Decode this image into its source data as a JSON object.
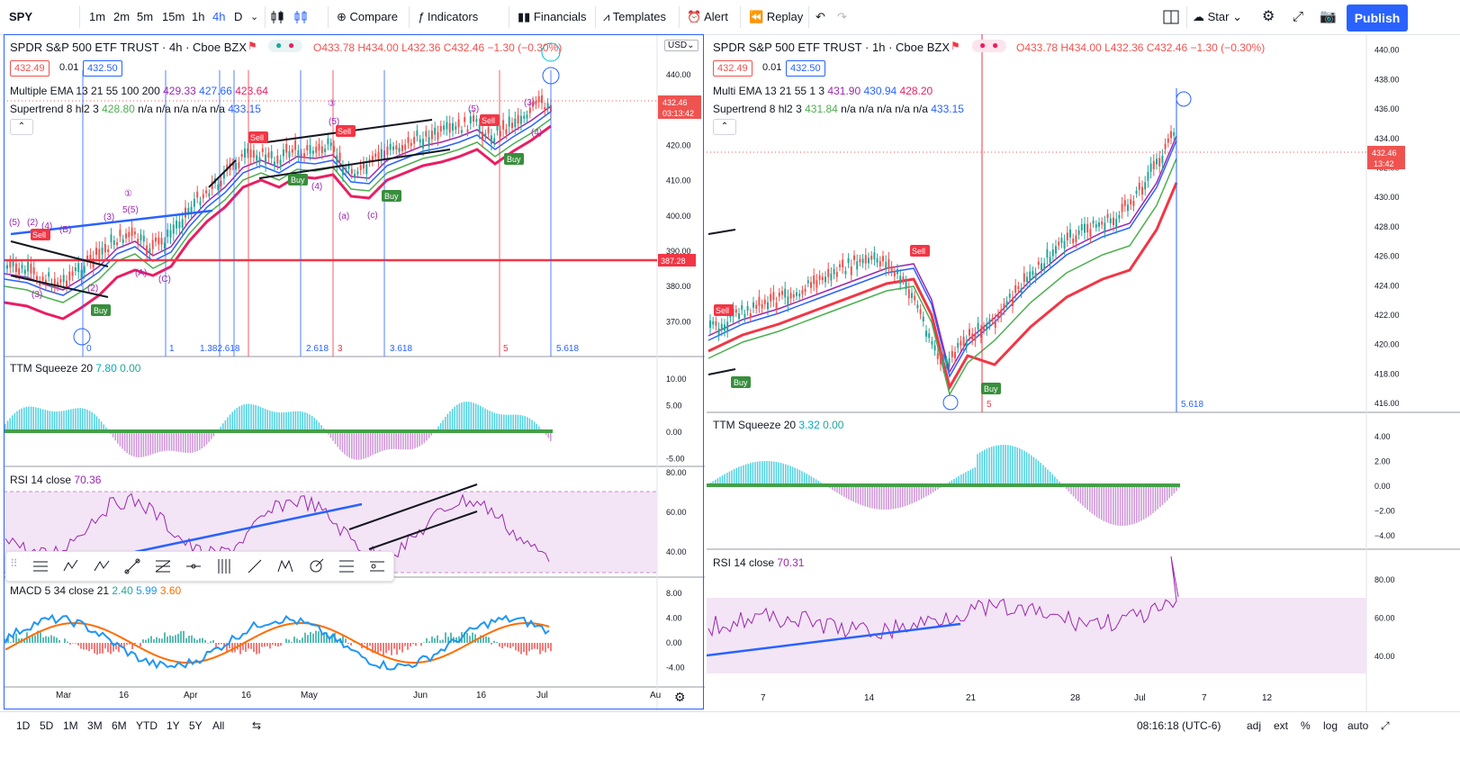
{
  "toolbar": {
    "symbol": "SPY",
    "intervals": [
      "1m",
      "2m",
      "5m",
      "15m",
      "1h",
      "4h",
      "D"
    ],
    "selected_interval": "4h",
    "compare": "Compare",
    "indicators": "Indicators",
    "financials": "Financials",
    "templates": "Templates",
    "alert": "Alert",
    "replay": "Replay",
    "star": "Star",
    "publish": "Publish"
  },
  "left": {
    "title": "SPDR S&P 500 ETF TRUST · 4h · Cboe BZX",
    "ohlc": "O433.78 H434.00 L432.36 C432.46 −1.30 (−0.30%)",
    "bid": "432.49",
    "spread": "0.01",
    "ask": "432.50",
    "ema_label": "Multiple EMA 13 21 55 100 200",
    "ema_vals": [
      "429.33",
      "427.66",
      "423.64"
    ],
    "st_label": "Supertrend 8 hl2 3",
    "st_val": "428.80",
    "st_na": "n/a n/a n/a n/a n/a",
    "st_val2": "433.15",
    "currency": "USD",
    "price_ticks": [
      "440.00",
      "430.00",
      "420.00",
      "410.00",
      "400.00",
      "390.00",
      "380.00",
      "370.00"
    ],
    "last_price": "432.46",
    "countdown": "03:13:42",
    "line_price": "387.28",
    "fib_labels": [
      "0",
      "1",
      "1.382.618",
      "2.618",
      "3",
      "3.618",
      "5",
      "5.618"
    ],
    "ttm_label": "TTM Squeeze 20",
    "ttm_v1": "7.80",
    "ttm_v2": "0.00",
    "ttm_ticks": [
      "10.00",
      "5.00",
      "0.00",
      "-5.00"
    ],
    "rsi_label": "RSI 14 close",
    "rsi_val": "70.36",
    "rsi_ticks": [
      "80.00",
      "60.00",
      "40.00"
    ],
    "macd_label": "MACD 5 34 close 21",
    "macd_v1": "2.40",
    "macd_v2": "5.99",
    "macd_v3": "3.60",
    "macd_ticks": [
      "8.00",
      "4.00",
      "0.00",
      "-4.00"
    ],
    "time_ticks": [
      "Mar",
      "16",
      "Apr",
      "16",
      "May",
      "Jun",
      "16",
      "Jul",
      "Au"
    ]
  },
  "right": {
    "title": "SPDR S&P 500 ETF TRUST · 1h · Cboe BZX",
    "ohlc": "O433.78 H434.00 L432.36 C432.46 −1.30 (−0.30%)",
    "bid": "432.49",
    "spread": "0.01",
    "ask": "432.50",
    "ema_label": "Multi EMA 13 21 55 1 3",
    "ema_vals": [
      "431.90",
      "430.94",
      "428.20"
    ],
    "st_label": "Supertrend 8 hl2 3",
    "st_val": "431.84",
    "st_na": "n/a n/a n/a n/a n/a",
    "st_val2": "433.15",
    "price_ticks": [
      "440.00",
      "438.00",
      "436.00",
      "434.00",
      "432.00",
      "430.00",
      "428.00",
      "426.00",
      "424.00",
      "422.00",
      "420.00",
      "418.00",
      "416.00"
    ],
    "last_price": "432.46",
    "countdown": "13:42",
    "fib_labels": [
      "5",
      "5.618"
    ],
    "ttm_label": "TTM Squeeze 20",
    "ttm_v1": "3.32",
    "ttm_v2": "0.00",
    "ttm_ticks": [
      "4.00",
      "2.00",
      "0.00",
      "−2.00",
      "−4.00"
    ],
    "rsi_label": "RSI 14 close",
    "rsi_val": "70.31",
    "rsi_ticks": [
      "80.00",
      "60.00",
      "40.00"
    ],
    "time_ticks": [
      "7",
      "14",
      "21",
      "28",
      "Jul",
      "7",
      "12"
    ]
  },
  "bottom": {
    "ranges": [
      "1D",
      "5D",
      "1M",
      "3M",
      "6M",
      "YTD",
      "1Y",
      "5Y",
      "All"
    ],
    "clock": "08:16:18 (UTC-6)",
    "adj": "adj",
    "ext": "ext",
    "pct": "%",
    "log": "log",
    "auto": "auto"
  },
  "colors": {
    "accent": "#2962ff",
    "up": "#26a69a",
    "down": "#ef5350",
    "rsi": "#9c27b0",
    "macd": "#2196f3",
    "signal": "#ff6d00",
    "teal": "#00bcd4"
  }
}
